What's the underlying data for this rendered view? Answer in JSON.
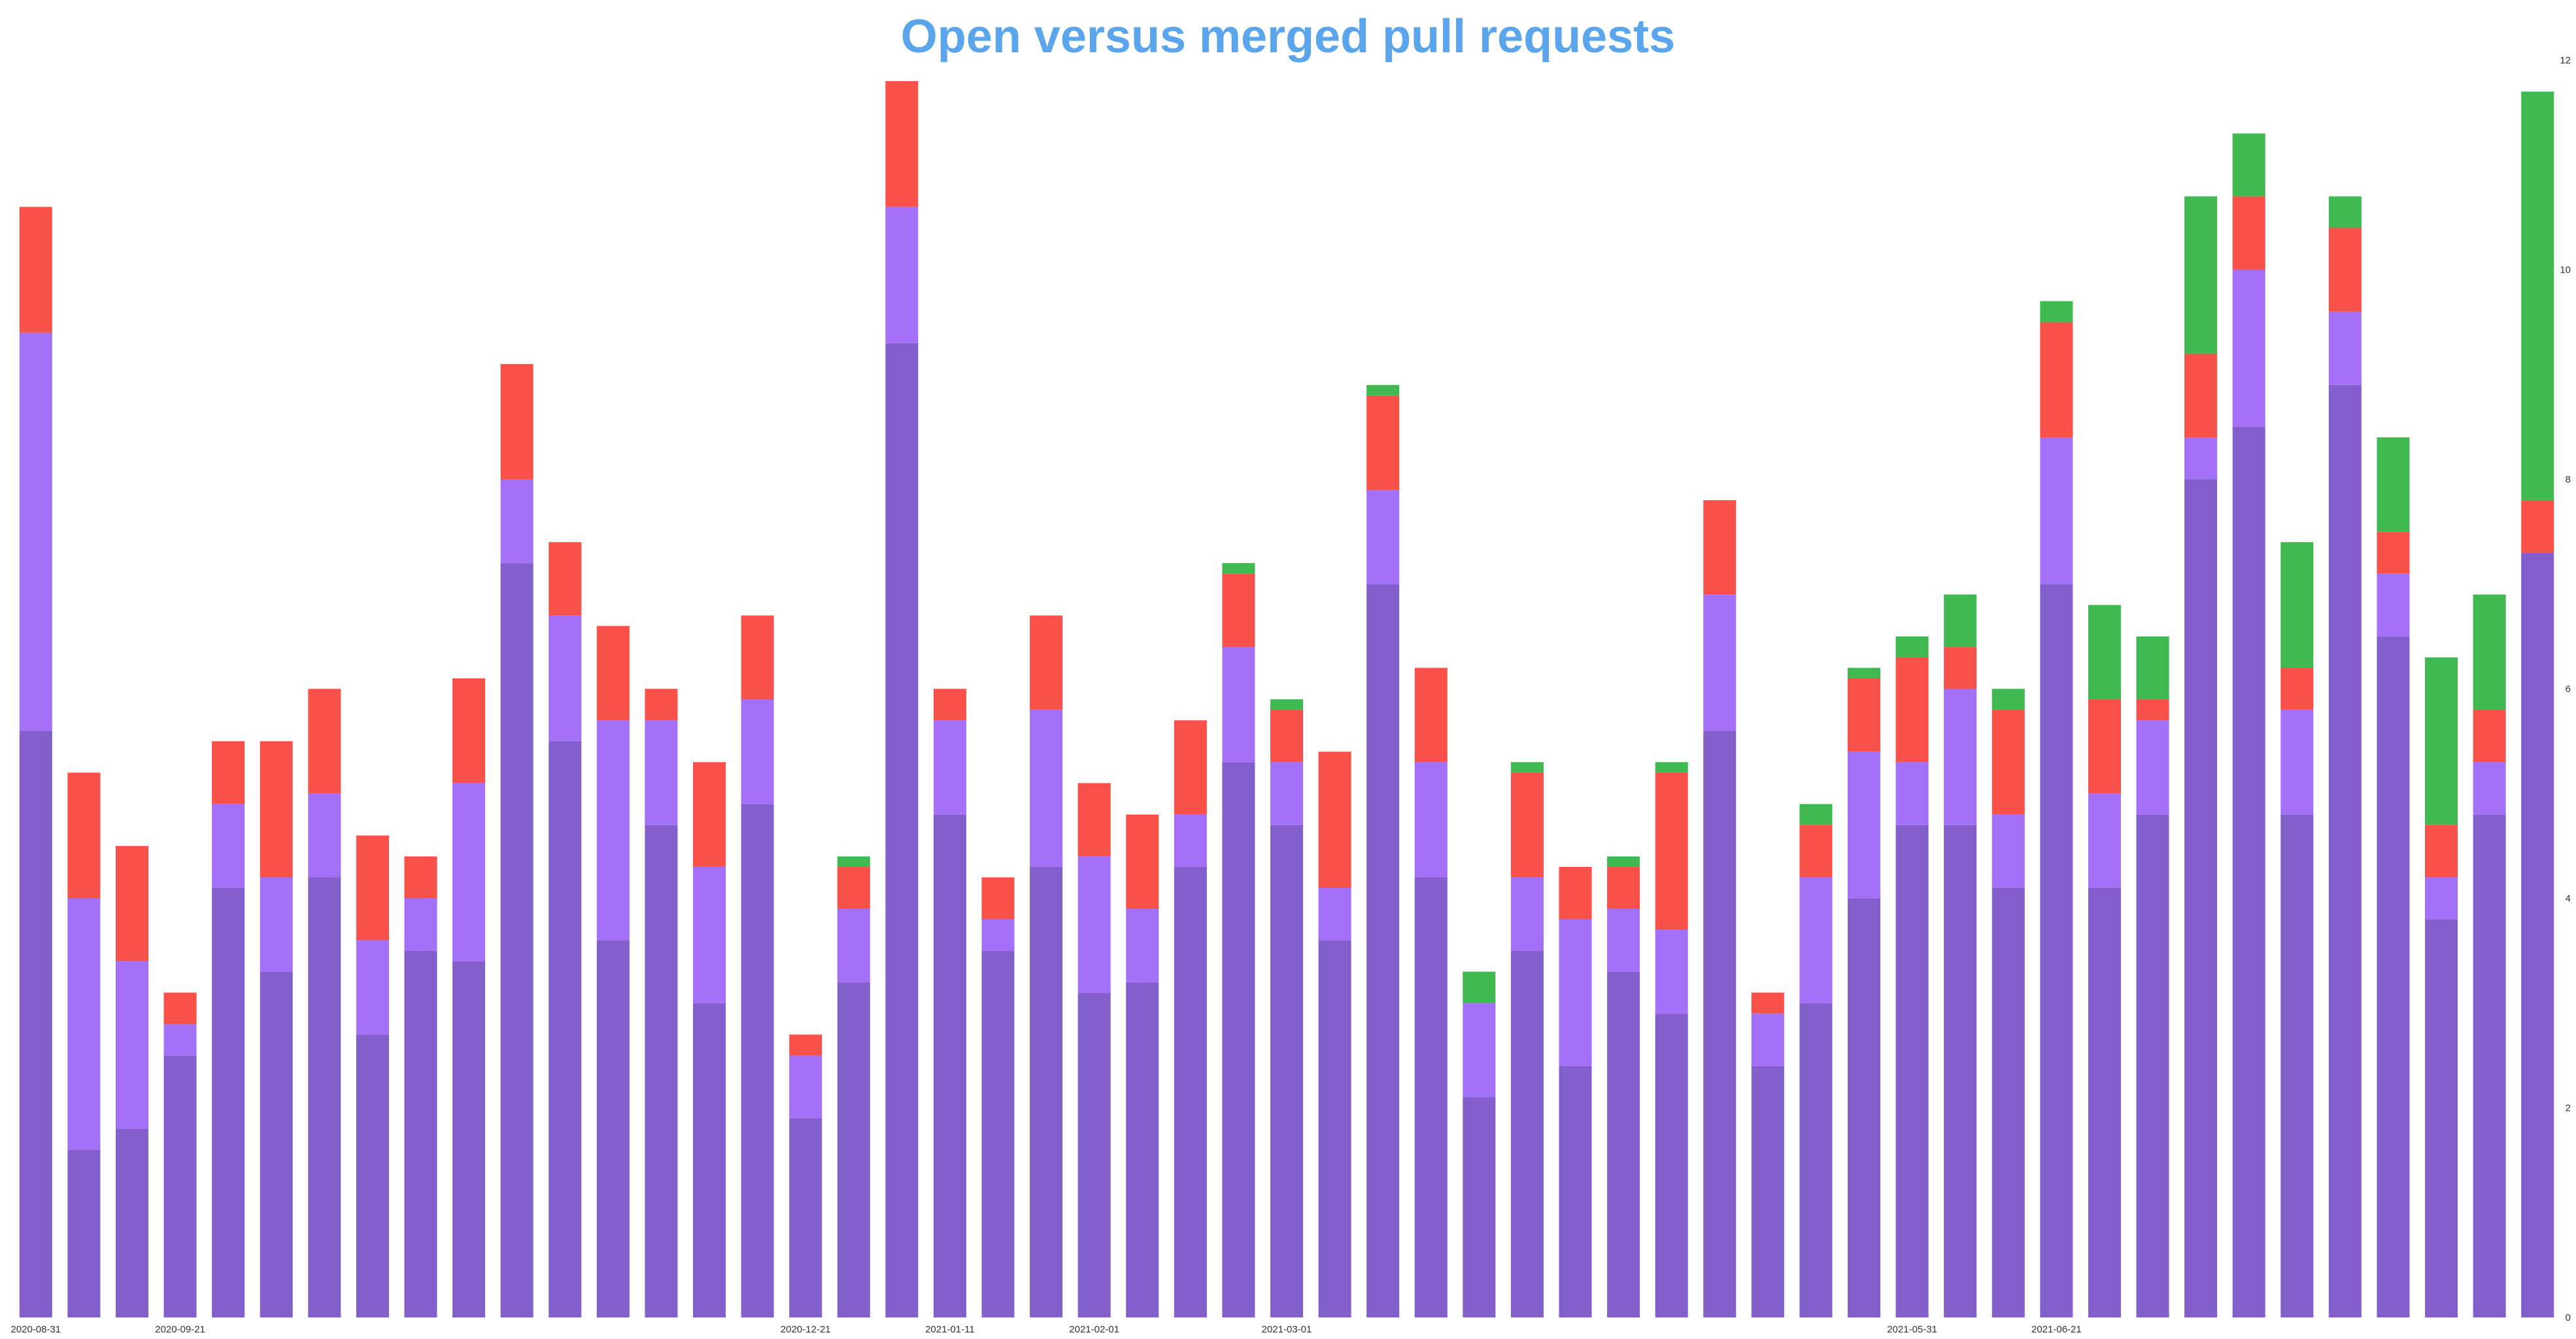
{
  "chart_data": {
    "type": "bar",
    "stacked": true,
    "title": "Open versus merged pull requests",
    "xlabel": "",
    "ylabel": "",
    "ylim": [
      0,
      12.2
    ],
    "yticks": [
      0,
      2,
      4,
      6,
      8,
      10,
      12
    ],
    "grid": false,
    "legend": "none",
    "x_tick_labels": [
      {
        "index": 0,
        "label": "2020-08-31"
      },
      {
        "index": 3,
        "label": "2020-09-21"
      },
      {
        "index": 16,
        "label": "2020-12-21"
      },
      {
        "index": 19,
        "label": "2021-01-11"
      },
      {
        "index": 22,
        "label": "2021-02-01"
      },
      {
        "index": 26,
        "label": "2021-03-01"
      },
      {
        "index": 39,
        "label": "2021-05-31"
      },
      {
        "index": 42,
        "label": "2021-06-21"
      }
    ],
    "series": [
      {
        "color": "#835fcb",
        "values": [
          5.6,
          1.6,
          1.8,
          2.5,
          4.1,
          3.3,
          4.2,
          2.7,
          3.5,
          3.4,
          7.2,
          5.5,
          3.6,
          4.7,
          3.0,
          4.9,
          1.9,
          3.2,
          9.3,
          4.8,
          3.5,
          4.3,
          3.1,
          3.2,
          4.3,
          5.3,
          4.7,
          3.6,
          7.0,
          4.2,
          2.1,
          3.5,
          2.4,
          3.3,
          2.9,
          5.6,
          2.4,
          3.0,
          4.0,
          4.7,
          4.7,
          4.1,
          7.0,
          4.1,
          4.8,
          8.0,
          8.5,
          4.8,
          8.9,
          6.5,
          3.8,
          4.8,
          7.3
        ],
        "role": "base"
      },
      {
        "color": "#a370f7",
        "values": [
          3.8,
          2.4,
          1.6,
          0.3,
          0.8,
          0.9,
          0.8,
          0.9,
          0.5,
          1.7,
          0.8,
          1.2,
          2.1,
          1.0,
          1.3,
          1.0,
          0.6,
          0.7,
          1.3,
          0.9,
          0.3,
          1.5,
          1.3,
          0.7,
          0.5,
          1.1,
          0.6,
          0.5,
          0.9,
          1.1,
          0.9,
          0.7,
          1.4,
          0.6,
          0.8,
          1.3,
          0.5,
          1.2,
          1.4,
          0.6,
          1.3,
          0.7,
          1.4,
          0.9,
          0.9,
          0.4,
          1.5,
          1.0,
          0.7,
          0.6,
          0.4,
          0.5,
          0.0
        ],
        "role": "middle"
      },
      {
        "color": "#f85149",
        "values": [
          1.2,
          1.2,
          1.1,
          0.3,
          0.6,
          1.3,
          1.0,
          1.0,
          0.4,
          1.0,
          1.1,
          0.7,
          0.9,
          0.3,
          1.0,
          0.8,
          0.2,
          0.4,
          1.2,
          0.3,
          0.4,
          0.9,
          0.7,
          0.9,
          0.9,
          0.7,
          0.5,
          1.3,
          0.9,
          0.9,
          0.0,
          1.0,
          0.5,
          0.4,
          1.5,
          0.9,
          0.2,
          0.5,
          0.7,
          1.0,
          0.4,
          1.0,
          1.1,
          0.9,
          0.2,
          0.8,
          0.7,
          0.4,
          0.8,
          0.4,
          0.5,
          0.5,
          0.5
        ],
        "role": "upper"
      },
      {
        "color": "#3fb950",
        "values": [
          0,
          0,
          0,
          0,
          0,
          0,
          0,
          0,
          0,
          0,
          0,
          0,
          0,
          0,
          0,
          0,
          0,
          0.1,
          0,
          0,
          0,
          0,
          0,
          0,
          0,
          0.1,
          0.1,
          0,
          0.1,
          0,
          0.3,
          0.1,
          0,
          0.1,
          0.1,
          0,
          0,
          0.2,
          0.1,
          0.2,
          0.5,
          0.2,
          0.2,
          0.9,
          0.6,
          1.5,
          0.6,
          1.2,
          0.3,
          0.9,
          1.6,
          1.1,
          3.9
        ],
        "role": "top"
      }
    ]
  }
}
